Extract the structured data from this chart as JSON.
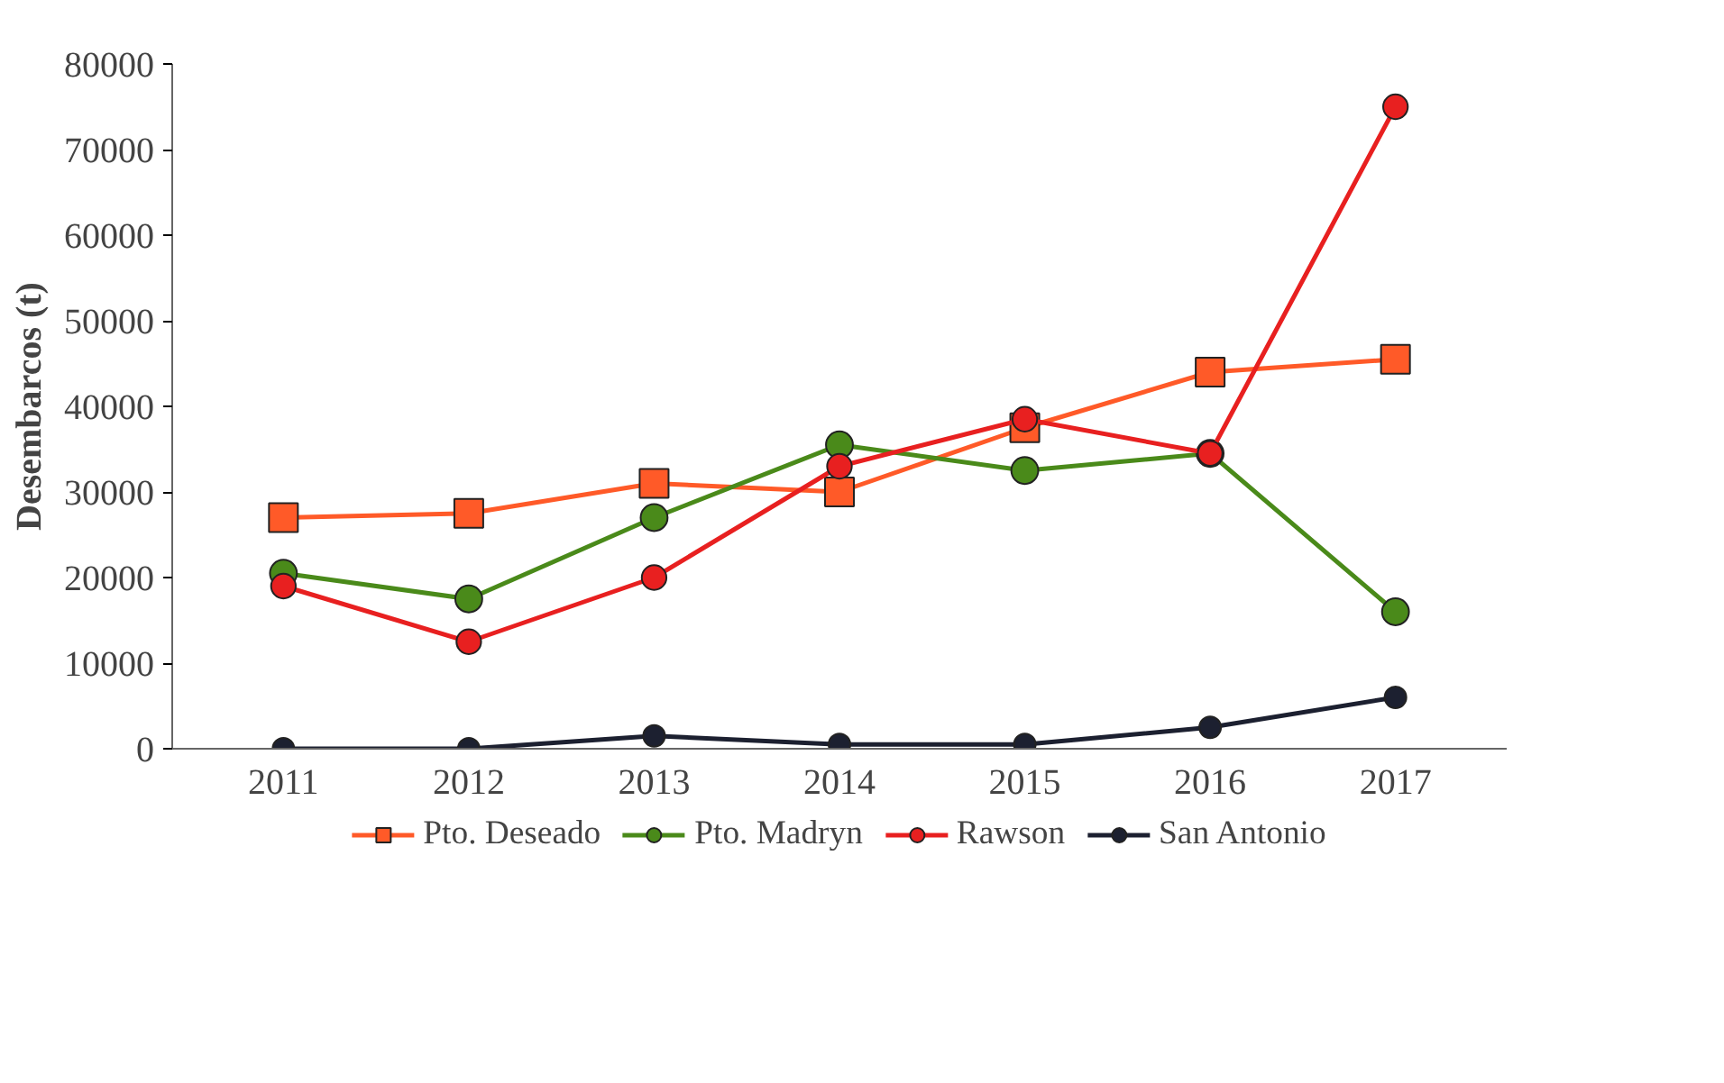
{
  "chart_data": {
    "type": "line",
    "ylabel": "Desembarcos (t)",
    "categories": [
      "2011",
      "2012",
      "2013",
      "2014",
      "2015",
      "2016",
      "2017"
    ],
    "series": [
      {
        "name": "Pto. Deseado",
        "color": "#ff5a28",
        "marker": "square",
        "values": [
          27000,
          27500,
          31000,
          30000,
          37500,
          44000,
          45500
        ]
      },
      {
        "name": "Pto. Madryn",
        "color": "#4a8a1a",
        "marker": "circle",
        "values": [
          20500,
          17500,
          27000,
          35500,
          32500,
          34500,
          16000
        ]
      },
      {
        "name": "Rawson",
        "color": "#e82020",
        "marker": "circle",
        "values": [
          19000,
          12500,
          20000,
          33000,
          38500,
          34500,
          75000
        ]
      },
      {
        "name": "San Antonio",
        "color": "#1c2030",
        "marker": "circle",
        "values": [
          0,
          0,
          1500,
          500,
          500,
          2500,
          6000
        ]
      }
    ],
    "ylim": [
      0,
      80000
    ],
    "yticks": [
      0,
      10000,
      20000,
      30000,
      40000,
      50000,
      60000,
      70000,
      80000
    ],
    "grid": false,
    "legend": "bottom",
    "line_style": "solid"
  }
}
